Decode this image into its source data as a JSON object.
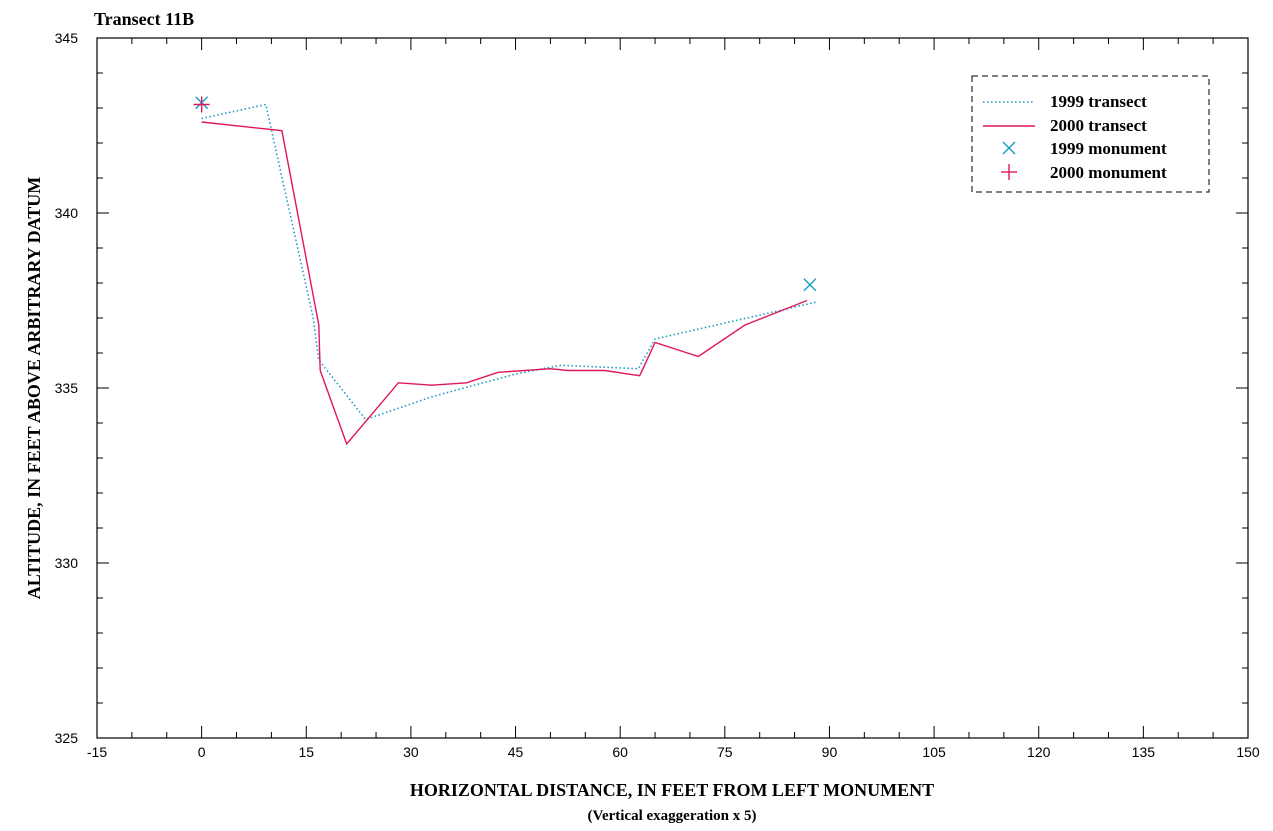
{
  "chart_data": {
    "type": "line",
    "title": "Transect 11B",
    "xlabel": "HORIZONTAL DISTANCE, IN FEET FROM LEFT MONUMENT",
    "xlabel_note": "(Vertical exaggeration x 5)",
    "ylabel": "ALTITUDE, IN FEET ABOVE ARBITRARY DATUM",
    "xlim": [
      -15,
      150
    ],
    "ylim": [
      325,
      345
    ],
    "x_ticks": [
      "-15",
      "0",
      "15",
      "30",
      "45",
      "60",
      "75",
      "90",
      "105",
      "120",
      "135",
      "150"
    ],
    "y_ticks": [
      "325",
      "330",
      "335",
      "340",
      "345"
    ],
    "grid": false,
    "legend_position": "top-right",
    "series": [
      {
        "name": "1999 transect",
        "style": "dotted",
        "color": "#1a9bc4",
        "points": [
          [
            0,
            342.7
          ],
          [
            9.2,
            343.1
          ],
          [
            16,
            337
          ],
          [
            16.8,
            335.8
          ],
          [
            23.5,
            334.1
          ],
          [
            33,
            334.75
          ],
          [
            45,
            335.4
          ],
          [
            51.5,
            335.65
          ],
          [
            62.6,
            335.55
          ],
          [
            65,
            336.4
          ],
          [
            88,
            337.45
          ]
        ]
      },
      {
        "name": "2000 transect",
        "style": "solid",
        "color": "#e0175a",
        "points": [
          [
            0,
            342.6
          ],
          [
            11.5,
            342.35
          ],
          [
            16.8,
            336.8
          ],
          [
            17,
            335.5
          ],
          [
            20.8,
            333.4
          ],
          [
            28.2,
            335.15
          ],
          [
            33,
            335.08
          ],
          [
            38,
            335.15
          ],
          [
            42.5,
            335.45
          ],
          [
            50,
            335.55
          ],
          [
            52.5,
            335.5
          ],
          [
            57.8,
            335.5
          ],
          [
            62.8,
            335.35
          ],
          [
            65,
            336.3
          ],
          [
            71.2,
            335.9
          ],
          [
            77.9,
            336.8
          ],
          [
            86.8,
            337.5
          ]
        ]
      }
    ],
    "markers": [
      {
        "name": "1999 monument",
        "symbol": "x",
        "color": "#1a9bc4",
        "points": [
          [
            0,
            343.15
          ],
          [
            87.2,
            337.95
          ]
        ]
      },
      {
        "name": "2000 monument",
        "symbol": "+",
        "color": "#e0175a",
        "points": [
          [
            0,
            343.1
          ]
        ]
      }
    ]
  }
}
